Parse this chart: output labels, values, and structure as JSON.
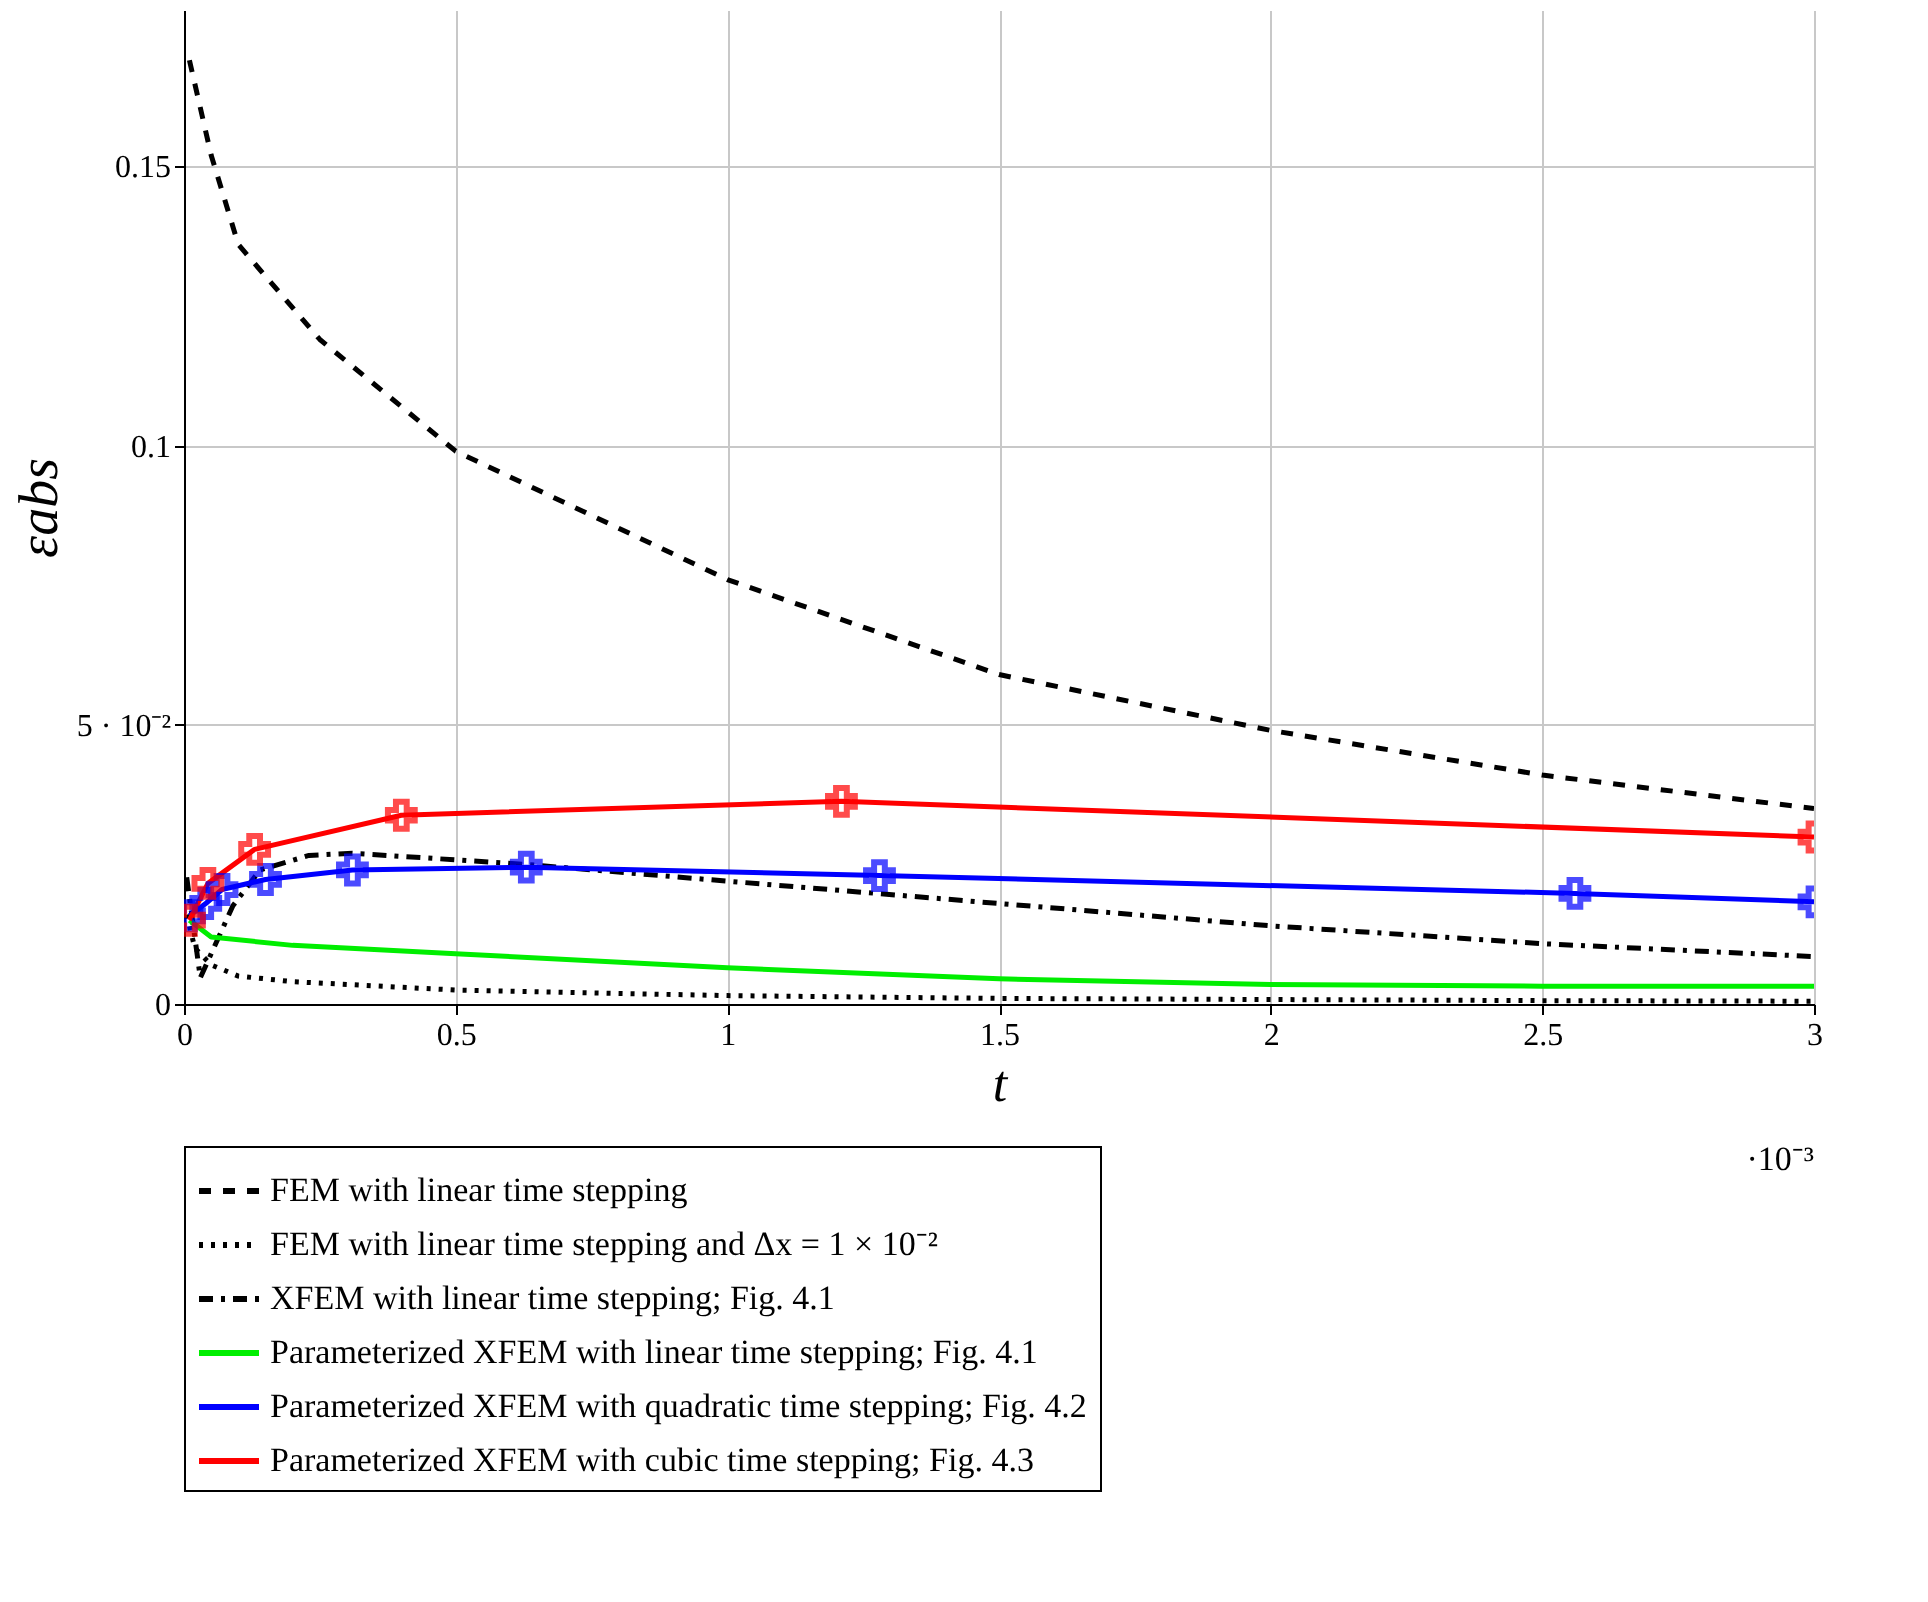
{
  "chart_data": {
    "type": "line",
    "xlabel": "t",
    "ylabel": "εabs",
    "xlim": [
      0,
      3
    ],
    "xticks": [
      0,
      0.5,
      1,
      1.5,
      2,
      2.5,
      3
    ],
    "ylim": [
      0,
      0.178
    ],
    "yticks": [
      0,
      {
        "value": 0.05,
        "label": "5 · 10⁻²"
      },
      0.1,
      0.15
    ],
    "grid": true,
    "legend": "bottom",
    "annotations": [
      "·10⁻³"
    ],
    "series": [
      {
        "name": "FEM with linear time stepping",
        "color": "#000000",
        "line_style": "dashed",
        "marker": "none",
        "x": [
          0.01,
          0.05,
          0.1,
          0.25,
          0.5,
          1,
          1.5,
          2,
          2.5,
          3
        ],
        "values": [
          0.169,
          0.152,
          0.136,
          0.119,
          0.099,
          0.076,
          0.059,
          0.049,
          0.041,
          0.035
        ]
      },
      {
        "name": "FEM with linear time stepping and Δx = 1 × 10⁻²",
        "color": "#000000",
        "line_style": "dotted",
        "marker": "none",
        "x": [
          0.005,
          0.02,
          0.05,
          0.1,
          0.2,
          0.5,
          1,
          1.5,
          2,
          2.5,
          3
        ],
        "values": [
          0.016,
          0.01,
          0.007,
          0.005,
          0.004,
          0.0025,
          0.0015,
          0.001,
          0.0008,
          0.0006,
          0.0005
        ]
      },
      {
        "name": "XFEM with linear time stepping; Fig. 4.1",
        "color": "#000000",
        "line_style": "dashdot",
        "marker": "none",
        "x": [
          0.005,
          0.03,
          0.09,
          0.14,
          0.23,
          0.31,
          0.63,
          1,
          1.5,
          2,
          2.5,
          3
        ],
        "values": [
          0.0227,
          0.0047,
          0.0176,
          0.024,
          0.0266,
          0.027,
          0.025,
          0.022,
          0.018,
          0.014,
          0.0108,
          0.0085
        ]
      },
      {
        "name": "Parameterized XFEM with linear time stepping; Fig. 4.1",
        "color": "#00ee00",
        "line_style": "solid",
        "marker": "none",
        "x": [
          0.01,
          0.05,
          0.2,
          0.5,
          1,
          1.5,
          2,
          2.5,
          3
        ],
        "values": [
          0.015,
          0.012,
          0.0105,
          0.009,
          0.0065,
          0.0045,
          0.0035,
          0.0032,
          0.0032
        ]
      },
      {
        "name": "Parameterized XFEM with quadratic time stepping; Fig. 4.2",
        "color": "#0000ff",
        "line_style": "solid",
        "marker": "cross",
        "x": [
          0.01,
          0.04,
          0.07,
          0.15,
          0.31,
          0.63,
          1.28,
          2.56,
          3
        ],
        "values": [
          0.0158,
          0.018,
          0.0205,
          0.0223,
          0.024,
          0.0245,
          0.023,
          0.0198,
          0.0183
        ]
      },
      {
        "name": "Parameterized XFEM with cubic time stepping; Fig. 4.3",
        "color": "#ff0000",
        "line_style": "solid",
        "marker": "cross",
        "x": [
          0.01,
          0.044,
          0.13,
          0.4,
          1.21,
          3
        ],
        "values": [
          0.015,
          0.0216,
          0.0277,
          0.0338,
          0.0363,
          0.0299
        ]
      }
    ]
  }
}
